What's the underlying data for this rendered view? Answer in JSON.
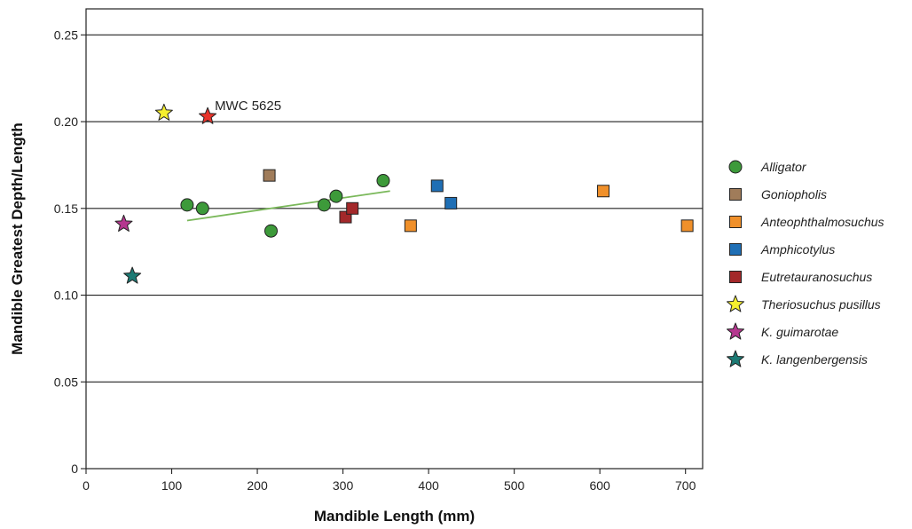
{
  "chart_data": {
    "type": "scatter",
    "title": "",
    "xlabel": "Mandible Length (mm)",
    "ylabel": "Mandible Greatest Depth/Length",
    "xlim": [
      0,
      720
    ],
    "ylim": [
      0,
      0.265
    ],
    "x_ticks": [
      "0",
      "100",
      "200",
      "300",
      "400",
      "500",
      "600",
      "700"
    ],
    "y_ticks": [
      "0",
      "0.05",
      "0.10",
      "0.15",
      "0.20",
      "0.25"
    ],
    "grid": "horizontal",
    "legend_position": "right",
    "series": [
      {
        "name": "Alligator",
        "marker": "circle",
        "color": "#3d9a3a",
        "points": [
          [
            118,
            0.152
          ],
          [
            136,
            0.15
          ],
          [
            216,
            0.137
          ],
          [
            278,
            0.152
          ],
          [
            292,
            0.157
          ],
          [
            347,
            0.166
          ]
        ]
      },
      {
        "name": "Goniopholis",
        "marker": "square",
        "color": "#a07c5a",
        "points": [
          [
            214,
            0.169
          ]
        ]
      },
      {
        "name": "Anteophthalmosuchus",
        "marker": "square",
        "color": "#f0902a",
        "points": [
          [
            379,
            0.14
          ],
          [
            604,
            0.16
          ],
          [
            702,
            0.14
          ]
        ]
      },
      {
        "name": "Amphicotylus",
        "marker": "square",
        "color": "#1f6fb5",
        "points": [
          [
            410,
            0.163
          ],
          [
            426,
            0.153
          ]
        ]
      },
      {
        "name": "Eutretauranosuchus",
        "marker": "square",
        "color": "#a3282a",
        "points": [
          [
            303,
            0.145
          ],
          [
            311,
            0.15
          ]
        ]
      },
      {
        "name": "Theriosuchus pusillus",
        "marker": "star",
        "color": "#f5ef2e",
        "points": [
          [
            91,
            0.205
          ]
        ]
      },
      {
        "name": "K. guimarotae",
        "marker": "star",
        "color": "#b5378f",
        "points": [
          [
            44,
            0.141
          ]
        ]
      },
      {
        "name": "K. langenbergensis",
        "marker": "star",
        "color": "#1c7a74",
        "points": [
          [
            54,
            0.111
          ]
        ]
      },
      {
        "name": "MWC 5625",
        "marker": "star",
        "color": "#e8332a",
        "in_legend": false,
        "points": [
          [
            142,
            0.203
          ]
        ]
      }
    ],
    "trendline": {
      "color": "#7ab85a",
      "x": [
        118,
        355
      ],
      "y": [
        0.143,
        0.16
      ]
    },
    "annotations": [
      {
        "text": "MWC 5625",
        "x": 142,
        "y": 0.203
      }
    ]
  }
}
